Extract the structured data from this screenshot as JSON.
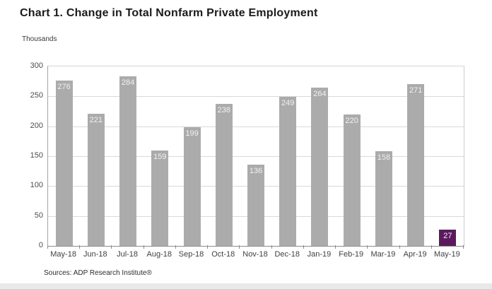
{
  "page": {
    "title": "Chart 1. Change in Total Nonfarm Private Employment",
    "units_label": "Thousands",
    "source": "Sources: ADP Research Institute®"
  },
  "colors": {
    "bar": "#ababab",
    "highlight_bar": "#5b1a5e",
    "data_label": "#f2f2f2",
    "gridline": "#d9d9d9",
    "axis": "#8c8c8c",
    "tick_label": "#404040",
    "bottom_strip": "#e9e9e9"
  },
  "chart_data": {
    "type": "bar",
    "title": "Chart 1. Change in Total Nonfarm Private Employment",
    "ylabel": "Thousands",
    "categories": [
      "May-18",
      "Jun-18",
      "Jul-18",
      "Aug-18",
      "Sep-18",
      "Oct-18",
      "Nov-18",
      "Dec-18",
      "Jan-19",
      "Feb-19",
      "Mar-19",
      "Apr-19",
      "May-19"
    ],
    "values": [
      276,
      221,
      284,
      159,
      199,
      238,
      136,
      249,
      264,
      220,
      158,
      271,
      27
    ],
    "highlight_index": 12,
    "ylim": [
      0,
      300
    ],
    "y_ticks": [
      0,
      50,
      100,
      150,
      200,
      250,
      300
    ],
    "grid": true,
    "data_labels": true,
    "legend": "none",
    "source": "Sources: ADP Research Institute®"
  }
}
